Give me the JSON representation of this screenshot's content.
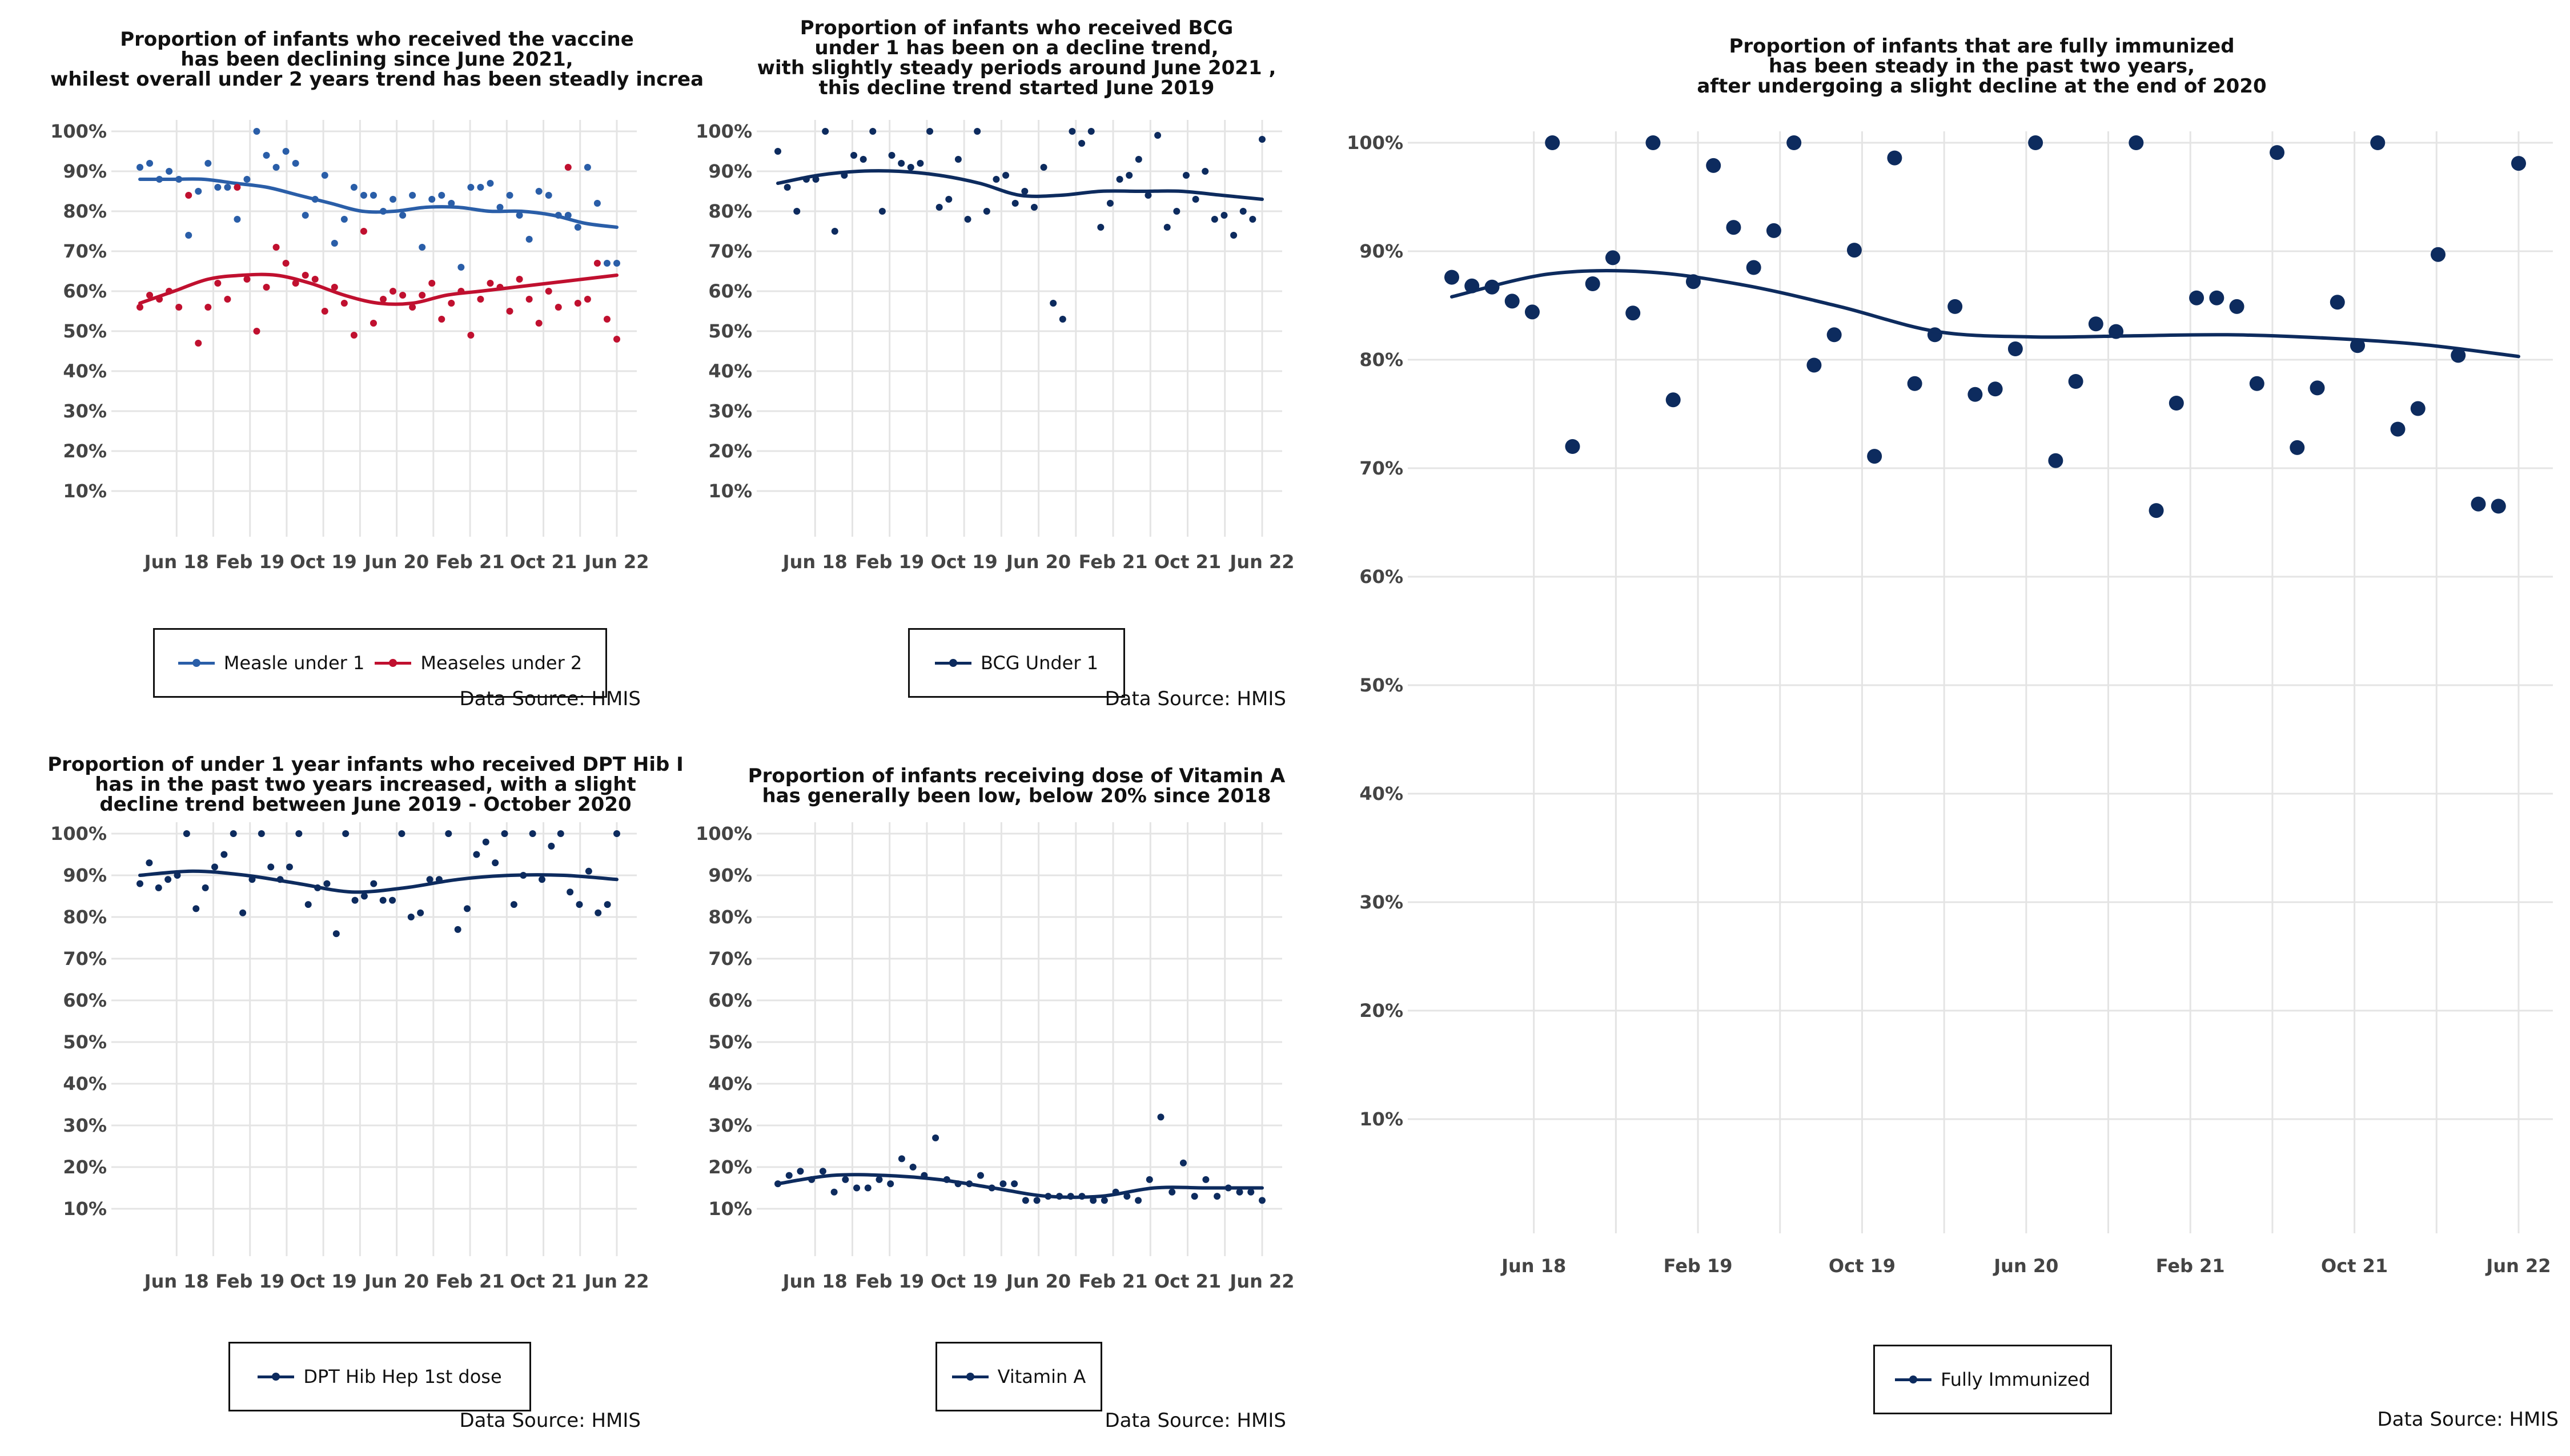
{
  "source_label": "Data Source: HMIS",
  "colors": {
    "navy": "#0d2b5e",
    "blue": "#2a5ea8",
    "red": "#c0102f",
    "grid": "#e4e4e4"
  },
  "chart_data": [
    {
      "id": "measles",
      "type": "scatter",
      "title": [
        "Proportion of infants who received the vaccine",
        "has been declining since June 2021,",
        "whilest overall under 2 years trend has been steadly increa"
      ],
      "xlabel": "",
      "ylabel": "",
      "x_ticks": [
        "Jun 18",
        "Feb 19",
        "Oct 19",
        "Jun 20",
        "Feb 21",
        "Oct 21",
        "Jun 22"
      ],
      "y_ticks": [
        "10%",
        "20%",
        "30%",
        "40%",
        "50%",
        "60%",
        "70%",
        "80%",
        "90%",
        "100%"
      ],
      "ylim": [
        0,
        100
      ],
      "grid": true,
      "legend_position": "bottom",
      "series": [
        {
          "name": "Measle under 1",
          "color": "#2a5ea8",
          "values": [
            91,
            92,
            88,
            90,
            88,
            74,
            85,
            92,
            86,
            86,
            78,
            88,
            100,
            94,
            91,
            95,
            92,
            79,
            83,
            89,
            72,
            78,
            86,
            84,
            84,
            80,
            83,
            79,
            84,
            71,
            83,
            84,
            82,
            66,
            86,
            86,
            87,
            81,
            84,
            79,
            73,
            85,
            84,
            79,
            79,
            76,
            91,
            82,
            67,
            67
          ],
          "trend": [
            88,
            88,
            88,
            87,
            86,
            84,
            82,
            80,
            80,
            81,
            81,
            80,
            80,
            79,
            77,
            76
          ]
        },
        {
          "name": "Measeles under 2",
          "color": "#c0102f",
          "values": [
            56,
            59,
            58,
            60,
            56,
            84,
            47,
            56,
            62,
            58,
            86,
            63,
            50,
            61,
            71,
            67,
            62,
            64,
            63,
            55,
            61,
            57,
            49,
            75,
            52,
            58,
            60,
            59,
            56,
            59,
            62,
            53,
            57,
            60,
            49,
            58,
            62,
            61,
            55,
            63,
            58,
            52,
            60,
            56,
            91,
            57,
            58,
            67,
            53,
            48
          ],
          "trend": [
            57,
            60,
            63,
            64,
            64,
            62,
            59,
            57,
            57,
            59,
            60,
            61,
            62,
            63,
            64
          ]
        }
      ]
    },
    {
      "id": "bcg",
      "type": "scatter",
      "title": [
        "Proportion of infants who received BCG",
        "under 1 has been on a decline trend,",
        "with slightly steady periods around June 2021 ,",
        "this decline trend started June 2019"
      ],
      "xlabel": "",
      "ylabel": "",
      "x_ticks": [
        "Jun 18",
        "Feb 19",
        "Oct 19",
        "Jun 20",
        "Feb 21",
        "Oct 21",
        "Jun 22"
      ],
      "y_ticks": [
        "10%",
        "20%",
        "30%",
        "40%",
        "50%",
        "60%",
        "70%",
        "80%",
        "90%",
        "100%"
      ],
      "ylim": [
        0,
        100
      ],
      "grid": true,
      "legend_position": "bottom",
      "series": [
        {
          "name": "BCG Under 1",
          "color": "#0d2b5e",
          "values": [
            95,
            86,
            80,
            88,
            88,
            100,
            75,
            89,
            94,
            93,
            100,
            80,
            94,
            92,
            91,
            92,
            100,
            81,
            83,
            93,
            78,
            100,
            80,
            88,
            89,
            82,
            85,
            81,
            91,
            57,
            53,
            100,
            97,
            100,
            76,
            82,
            88,
            89,
            93,
            84,
            99,
            76,
            80,
            89,
            83,
            90,
            78,
            79,
            74,
            80,
            78,
            98
          ],
          "trend": [
            87,
            89,
            90,
            90,
            89,
            87,
            84,
            84,
            85,
            85,
            85,
            84,
            83
          ]
        }
      ]
    },
    {
      "id": "dpt",
      "type": "scatter",
      "title": [
        "Proportion of under 1 year infants who received DPT Hib I",
        "has in the past two years increased, with a slight",
        "decline trend between June 2019 - October 2020"
      ],
      "xlabel": "",
      "ylabel": "",
      "x_ticks": [
        "Jun 18",
        "Feb 19",
        "Oct 19",
        "Jun 20",
        "Feb 21",
        "Oct 21",
        "Jun 22"
      ],
      "y_ticks": [
        "10%",
        "20%",
        "30%",
        "40%",
        "50%",
        "60%",
        "70%",
        "80%",
        "90%",
        "100%"
      ],
      "ylim": [
        0,
        100
      ],
      "grid": true,
      "legend_position": "bottom",
      "series": [
        {
          "name": "DPT Hib Hep 1st dose",
          "color": "#0d2b5e",
          "values": [
            88,
            93,
            87,
            89,
            90,
            100,
            82,
            87,
            92,
            95,
            100,
            81,
            89,
            100,
            92,
            89,
            92,
            100,
            83,
            87,
            88,
            76,
            100,
            84,
            85,
            88,
            84,
            84,
            100,
            80,
            81,
            89,
            89,
            100,
            77,
            82,
            95,
            98,
            93,
            100,
            83,
            90,
            100,
            89,
            97,
            100,
            86,
            83,
            91,
            81,
            83,
            100
          ],
          "trend": [
            90,
            91,
            90,
            88,
            86,
            87,
            89,
            90,
            90,
            89
          ]
        }
      ]
    },
    {
      "id": "vita",
      "type": "scatter",
      "title": [
        "Proportion of infants receiving dose of Vitamin A",
        "has generally been low, below 20% since 2018"
      ],
      "xlabel": "",
      "ylabel": "",
      "x_ticks": [
        "Jun 18",
        "Feb 19",
        "Oct 19",
        "Jun 20",
        "Feb 21",
        "Oct 21",
        "Jun 22"
      ],
      "y_ticks": [
        "10%",
        "20%",
        "30%",
        "40%",
        "50%",
        "60%",
        "70%",
        "80%",
        "90%",
        "100%"
      ],
      "ylim": [
        0,
        100
      ],
      "grid": true,
      "legend_position": "bottom",
      "series": [
        {
          "name": "Vitamin A",
          "color": "#0d2b5e",
          "values": [
            16,
            18,
            19,
            17,
            19,
            14,
            17,
            15,
            15,
            17,
            16,
            22,
            20,
            18,
            27,
            17,
            16,
            16,
            18,
            15,
            16,
            16,
            12,
            12,
            13,
            13,
            13,
            13,
            12,
            12,
            14,
            13,
            12,
            17,
            32,
            14,
            21,
            13,
            17,
            13,
            15,
            14,
            14,
            12
          ],
          "trend": [
            16,
            18,
            18,
            17,
            15,
            13,
            13,
            15,
            15,
            15
          ]
        }
      ]
    },
    {
      "id": "fully",
      "type": "scatter",
      "title": [
        "Proportion of infants that are fully immunized",
        "has been steady in the past two years,",
        "after undergoing a slight decline at the end of 2020"
      ],
      "xlabel": "",
      "ylabel": "",
      "x_ticks": [
        "Jun 18",
        "Feb 19",
        "Oct 19",
        "Jun 20",
        "Feb 21",
        "Oct 21",
        "Jun 22"
      ],
      "y_ticks": [
        "10%",
        "20%",
        "30%",
        "40%",
        "50%",
        "60%",
        "70%",
        "80%",
        "90%",
        "100%"
      ],
      "ylim": [
        0,
        100
      ],
      "grid": true,
      "legend_position": "bottom",
      "series": [
        {
          "name": "Fully Immunized",
          "color": "#0d2b5e",
          "values": [
            87.6,
            86.8,
            86.7,
            85.4,
            84.4,
            100,
            72,
            87,
            89.4,
            84.3,
            100,
            76.3,
            87.2,
            97.9,
            92.2,
            88.5,
            91.9,
            100,
            79.5,
            82.3,
            90.1,
            71.1,
            98.6,
            77.8,
            82.3,
            84.9,
            76.8,
            77.3,
            81,
            100,
            70.7,
            78,
            83.3,
            82.6,
            100,
            66.1,
            76,
            85.7,
            85.7,
            84.9,
            77.8,
            99.1,
            71.9,
            77.4,
            85.3,
            81.3,
            100,
            73.6,
            75.5,
            89.7,
            80.4,
            66.7,
            66.5,
            98.1
          ],
          "trend": [
            85.8,
            87.9,
            88.1,
            86.9,
            84.9,
            82.6,
            82.1,
            82.2,
            82.3,
            82,
            81.4,
            80.3
          ]
        }
      ]
    }
  ]
}
